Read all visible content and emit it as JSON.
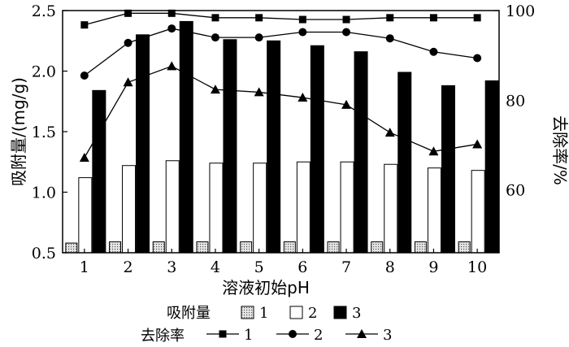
{
  "chart_data": {
    "type": "bar",
    "xlabel": "溶液初始pH",
    "ylabel": "吸附量/(mg/g)",
    "y2label": "去除率/%",
    "categories": [
      "1",
      "2",
      "3",
      "4",
      "5",
      "6",
      "7",
      "8",
      "9",
      "10"
    ],
    "ylim": [
      0.5,
      2.5
    ],
    "yticks": [
      "0.5",
      "1.0",
      "1.5",
      "2.0",
      "2.5"
    ],
    "y2lim": [
      46,
      100
    ],
    "y2ticks": [
      "60",
      "80",
      "100"
    ],
    "bar_series": [
      {
        "name": "1",
        "values": [
          0.58,
          0.59,
          0.59,
          0.59,
          0.59,
          0.59,
          0.59,
          0.59,
          0.59,
          0.59
        ],
        "fill": "#d8d8d8",
        "pattern": "dotted"
      },
      {
        "name": "2",
        "values": [
          1.12,
          1.22,
          1.26,
          1.24,
          1.24,
          1.25,
          1.25,
          1.23,
          1.2,
          1.18
        ],
        "fill": "#ffffff"
      },
      {
        "name": "3",
        "values": [
          1.84,
          2.3,
          2.41,
          2.26,
          2.25,
          2.21,
          2.16,
          1.99,
          1.88,
          1.92
        ],
        "fill": "#000000"
      }
    ],
    "line_series": [
      {
        "name": "1",
        "marker": "square",
        "values": [
          96.8,
          99.4,
          99.4,
          98.4,
          98.4,
          98.0,
          98.0,
          98.4,
          98.4,
          98.4
        ]
      },
      {
        "name": "2",
        "marker": "circle",
        "values": [
          85.5,
          92.8,
          96.0,
          94.0,
          94.0,
          95.2,
          95.2,
          93.8,
          90.8,
          89.4
        ]
      },
      {
        "name": "3",
        "marker": "triangle",
        "values": [
          67.2,
          84.0,
          87.6,
          82.4,
          81.8,
          80.6,
          79.0,
          72.8,
          68.6,
          70.2
        ]
      }
    ],
    "legend": {
      "bar_label": "吸附量",
      "line_label": "去除率",
      "items": [
        "1",
        "2",
        "3"
      ]
    }
  }
}
